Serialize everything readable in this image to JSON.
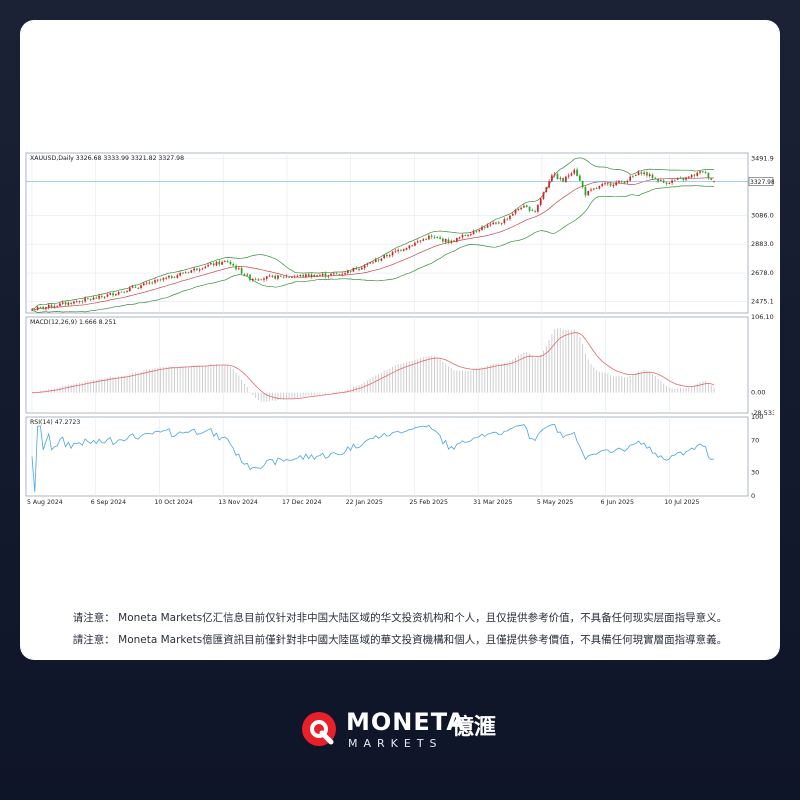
{
  "colors": {
    "up": "#d61f1f",
    "down": "#1fa61f",
    "band": "#3c8c3c",
    "mid": "#c44b4b",
    "macd_hist": "#c9c9c9",
    "macd_signal": "#e06a6a",
    "rsi": "#4aa3e6",
    "grid": "#e3e7ef",
    "price_line": "#6cb4f0",
    "brand_red": "#e8202a"
  },
  "disclaimer": {
    "simplified": "请注意： Moneta Markets亿汇信息目前仅针对非中国大陆区域的华文投资机构和个人，且仅提供参考价值，不具备任何现实层面指导意义。",
    "traditional": "請注意： Moneta Markets億匯資訊目前僅針對非中國大陸區域的華文投資機構和個人，且僅提供參考價值，不具備任何現實層面指導意義。"
  },
  "logo": {
    "name": "MONETA",
    "cn": "億滙",
    "sub": "MARKETS"
  },
  "chart_data": {
    "type": "candlestick",
    "header": "XAUUSD,Daily  3326.68 3333.99 3321.82 3327.98",
    "symbol": "XAUUSD",
    "timeframe": "Daily",
    "ohlc_last": {
      "open": 3326.68,
      "high": 3333.99,
      "low": 3321.82,
      "close": 3327.98
    },
    "current_price_label": "3327.98",
    "price_ticks": [
      "3491.90",
      "3086.00",
      "2883.05",
      "2678.05",
      "2475.10"
    ],
    "price_tick_values": [
      3491.9,
      3086.0,
      2883.05,
      2678.05,
      2475.1
    ],
    "price_range": [
      2395,
      3530
    ],
    "x_labels": [
      "5 Aug 2024",
      "6 Sep 2024",
      "10 Oct 2024",
      "13 Nov 2024",
      "17 Dec 2024",
      "22 Jan 2025",
      "25 Feb 2025",
      "31 Mar 2025",
      "5 May 2025",
      "6 Jun 2025",
      "10 Jul 2025"
    ],
    "close_anchors": [
      {
        "t": 0,
        "v": 2420
      },
      {
        "t": 24,
        "v": 2505
      },
      {
        "t": 48,
        "v": 2640
      },
      {
        "t": 62,
        "v": 2730
      },
      {
        "t": 70,
        "v": 2760
      },
      {
        "t": 78,
        "v": 2640
      },
      {
        "t": 88,
        "v": 2650
      },
      {
        "t": 98,
        "v": 2660
      },
      {
        "t": 110,
        "v": 2670
      },
      {
        "t": 120,
        "v": 2740
      },
      {
        "t": 130,
        "v": 2830
      },
      {
        "t": 142,
        "v": 2935
      },
      {
        "t": 150,
        "v": 2900
      },
      {
        "t": 160,
        "v": 2995
      },
      {
        "t": 168,
        "v": 3040
      },
      {
        "t": 175,
        "v": 3150
      },
      {
        "t": 180,
        "v": 3120
      },
      {
        "t": 186,
        "v": 3380
      },
      {
        "t": 190,
        "v": 3330
      },
      {
        "t": 194,
        "v": 3420
      },
      {
        "t": 198,
        "v": 3240
      },
      {
        "t": 204,
        "v": 3300
      },
      {
        "t": 212,
        "v": 3330
      },
      {
        "t": 218,
        "v": 3395
      },
      {
        "t": 226,
        "v": 3320
      },
      {
        "t": 234,
        "v": 3350
      },
      {
        "t": 240,
        "v": 3400
      },
      {
        "t": 244,
        "v": 3328
      }
    ],
    "macd": {
      "label": "MACD(12,26,9) 1.666 8.251",
      "ticks": [
        "106.105",
        "0.00",
        "-28.533"
      ],
      "tick_values": [
        106.105,
        0,
        -28.533
      ],
      "range": [
        -28.533,
        106.105
      ],
      "last_main": 1.666,
      "last_signal": 8.251
    },
    "rsi": {
      "label": "RSI(14) 47.2723",
      "ticks": [
        "100",
        "70",
        "30",
        "0"
      ],
      "tick_values": [
        100,
        70,
        30,
        0
      ],
      "range": [
        0,
        100
      ],
      "last": 47.2723
    },
    "bollinger": true,
    "grid": true
  }
}
